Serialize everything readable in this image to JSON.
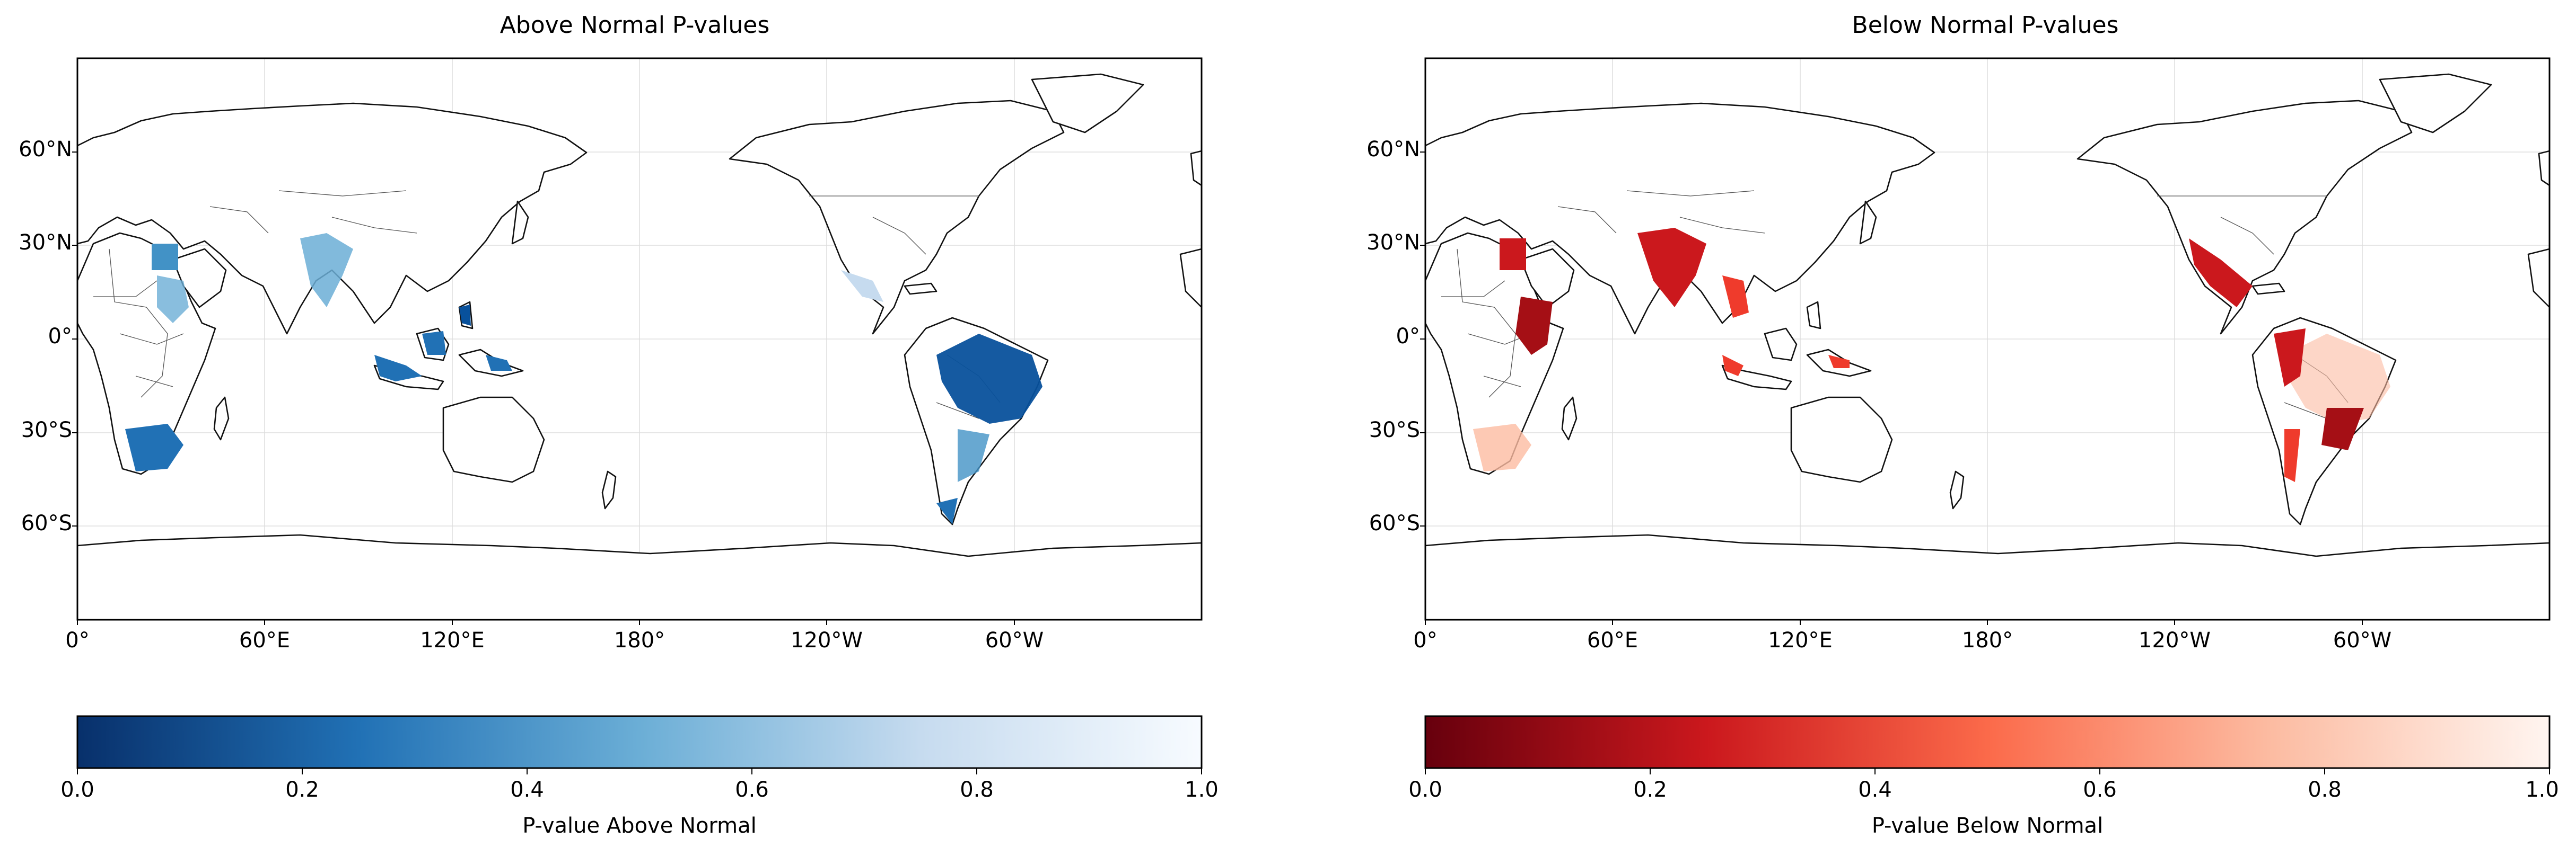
{
  "panels": [
    {
      "title": "Above Normal P-values",
      "lat_ticks": [
        "60°N",
        "30°N",
        "0°",
        "30°S",
        "60°S"
      ],
      "lon_ticks": [
        "0°",
        "60°E",
        "120°E",
        "180°",
        "120°W",
        "60°W"
      ],
      "colorbar": {
        "label": "P-value Above Normal",
        "ticks": [
          "0.0",
          "0.2",
          "0.4",
          "0.6",
          "0.8",
          "1.0"
        ],
        "colormap": "Blues_r",
        "dark": "#08306b",
        "mid": "#4292c6",
        "light": "#f7fbff"
      }
    },
    {
      "title": "Below Normal P-values",
      "lat_ticks": [
        "60°N",
        "30°N",
        "0°",
        "30°S",
        "60°S"
      ],
      "lon_ticks": [
        "0°",
        "60°E",
        "120°E",
        "180°",
        "120°W",
        "60°W"
      ],
      "colorbar": {
        "label": "P-value Below Normal",
        "ticks": [
          "0.0",
          "0.2",
          "0.4",
          "0.6",
          "0.8",
          "1.0"
        ],
        "colormap": "Reds_r",
        "dark": "#67000d",
        "mid": "#ef3b2c",
        "light": "#fff5f0"
      }
    }
  ]
}
